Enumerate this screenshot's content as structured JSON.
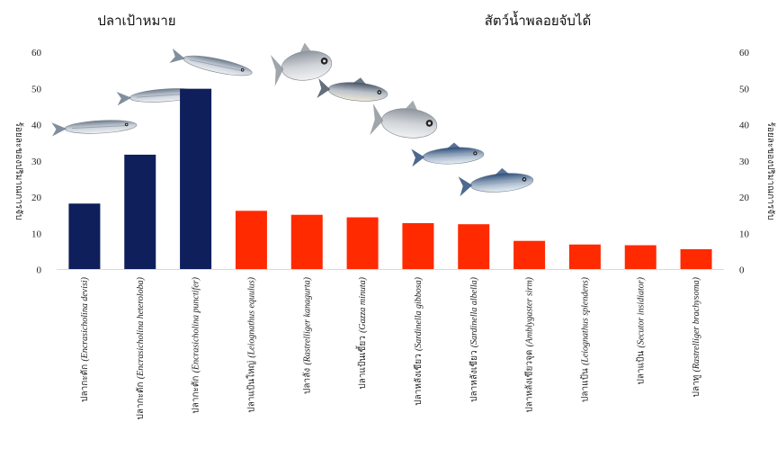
{
  "chart_data": {
    "type": "bar",
    "group_labels": [
      "ปลาเป้าหมาย",
      "สัตว์น้ำพลอยจับได้"
    ],
    "ylabel_left": "ร้อยละของปริมาณการจับ",
    "ylabel_right": "ร้อยละของปริมาณการจับ",
    "ylim": [
      0,
      60
    ],
    "yticks": [
      0,
      10,
      20,
      30,
      40,
      50,
      60
    ],
    "grid": false,
    "categories": [
      {
        "thai": "ปลากะตัก",
        "sci": "(Encrasicholina devisi)",
        "group": "target"
      },
      {
        "thai": "ปลากะตัก",
        "sci": "(Encrasicholina heteroloba)",
        "group": "target"
      },
      {
        "thai": "ปลากะตัก",
        "sci": "(Encrasicholina punctifer)",
        "group": "target"
      },
      {
        "thai": "ปลาแป้นใหญ่",
        "sci": "(Leiognathus equulus)",
        "group": "bycatch"
      },
      {
        "thai": "ปลาลัง",
        "sci": "(Rastrelliger kanagurta)",
        "group": "bycatch"
      },
      {
        "thai": "ปลาแป้นเขี้ยว",
        "sci": "(Gazza minuta)",
        "group": "bycatch"
      },
      {
        "thai": "ปลาหลังเขียว",
        "sci": "(Sardinella gibbosa)",
        "group": "bycatch"
      },
      {
        "thai": "ปลาหลังเขียว",
        "sci": "(Sardinella albella)",
        "group": "bycatch"
      },
      {
        "thai": "ปลาหลังเขียวจุด",
        "sci": "(Amblygaster sirm)",
        "group": "bycatch"
      },
      {
        "thai": "ปลาแป้น",
        "sci": "(Leiognathus splendens)",
        "group": "bycatch"
      },
      {
        "thai": "ปลาแป้น",
        "sci": "(Secutor insidiator)",
        "group": "bycatch"
      },
      {
        "thai": "ปลาทู",
        "sci": "(Rastrelliger brachysoma)",
        "group": "bycatch"
      }
    ],
    "values": [
      18.2,
      31.7,
      49.9,
      16.2,
      15.1,
      14.4,
      12.8,
      12.5,
      7.9,
      6.9,
      6.7,
      5.6
    ],
    "colors": {
      "target": "#0f1f5c",
      "bycatch": "#ff2a00"
    },
    "fish_icons": [
      "anchovy-icon",
      "anchovy-icon",
      "anchovy-icon",
      "ponyfish-icon",
      "mackerel-icon",
      "ponyfish-icon",
      "sardine-icon",
      "sardine-icon"
    ]
  }
}
